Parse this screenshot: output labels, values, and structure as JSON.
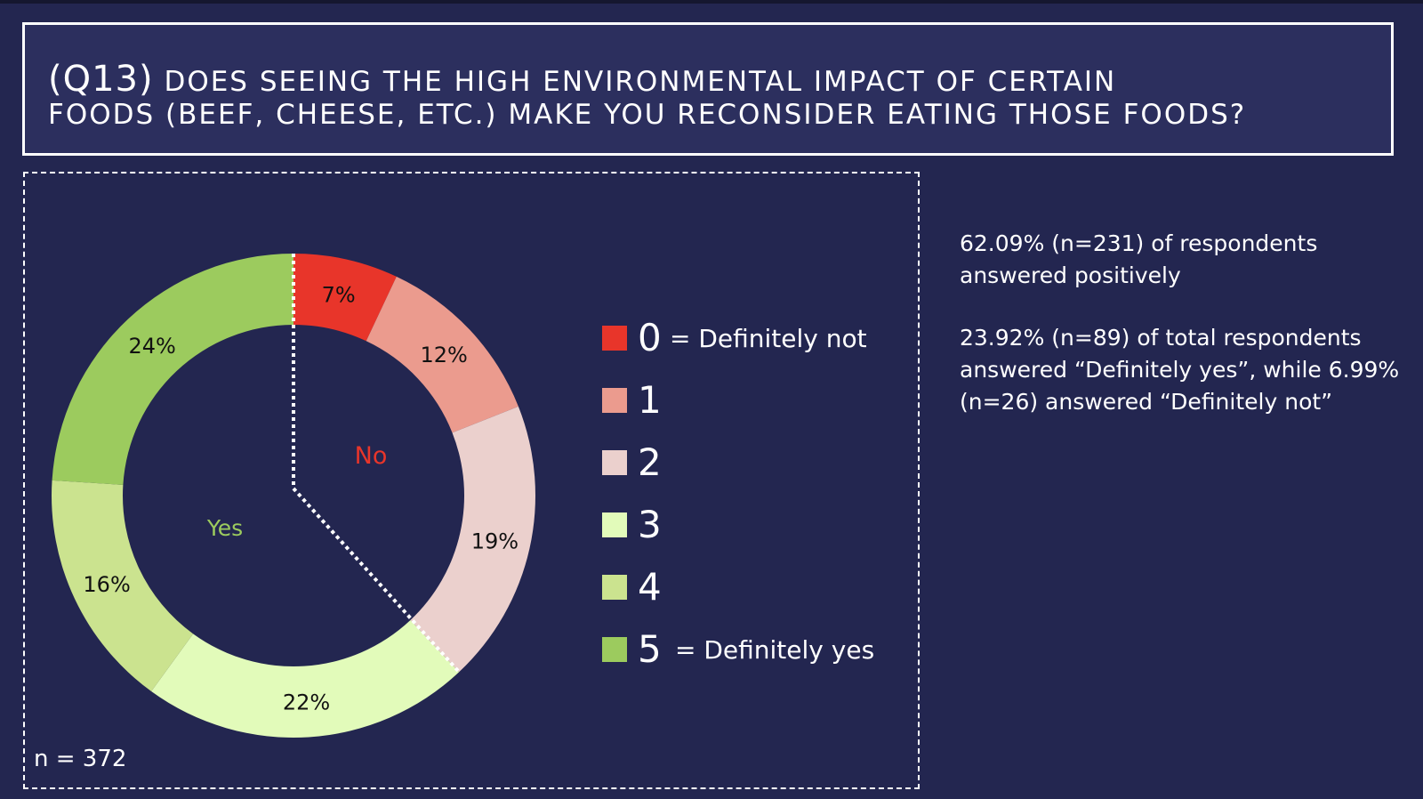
{
  "title": {
    "question_tag": "(Q13)",
    "line1": "Does seeing the high environmental impact of certain",
    "line2": "foods (beef, cheese, etc.) make you reconsider eating those foods?"
  },
  "chart_data": {
    "type": "donut",
    "categories": [
      "0",
      "1",
      "2",
      "3",
      "4",
      "5"
    ],
    "values": [
      7,
      12,
      19,
      22,
      16,
      24
    ],
    "labels": [
      "7%",
      "12%",
      "19%",
      "22%",
      "16%",
      "24%"
    ],
    "colors": [
      "#e8352a",
      "#eb9b8e",
      "#ebd0cd",
      "#e2fbba",
      "#cbe38f",
      "#9ccb5e"
    ],
    "legend": [
      {
        "number": "0",
        "desc": "= Definitely not"
      },
      {
        "number": "1",
        "desc": ""
      },
      {
        "number": "2",
        "desc": ""
      },
      {
        "number": "3",
        "desc": ""
      },
      {
        "number": "4",
        "desc": ""
      },
      {
        "number": "5",
        "desc": "= Definitely yes"
      }
    ],
    "legend_position": "right",
    "group_labels": {
      "no": "No",
      "yes": "Yes"
    },
    "group_colors": {
      "no": "#e8352a",
      "yes": "#9ccb5e"
    },
    "divider_after_category": "2"
  },
  "sample_size": "n = 372",
  "notes": {
    "p1": "62.09% (n=231) of respondents answered positively",
    "p2": "23.92% (n=89) of total respondents answered “Definitely yes”, while 6.99% (n=26) answered “Definitely not”"
  }
}
